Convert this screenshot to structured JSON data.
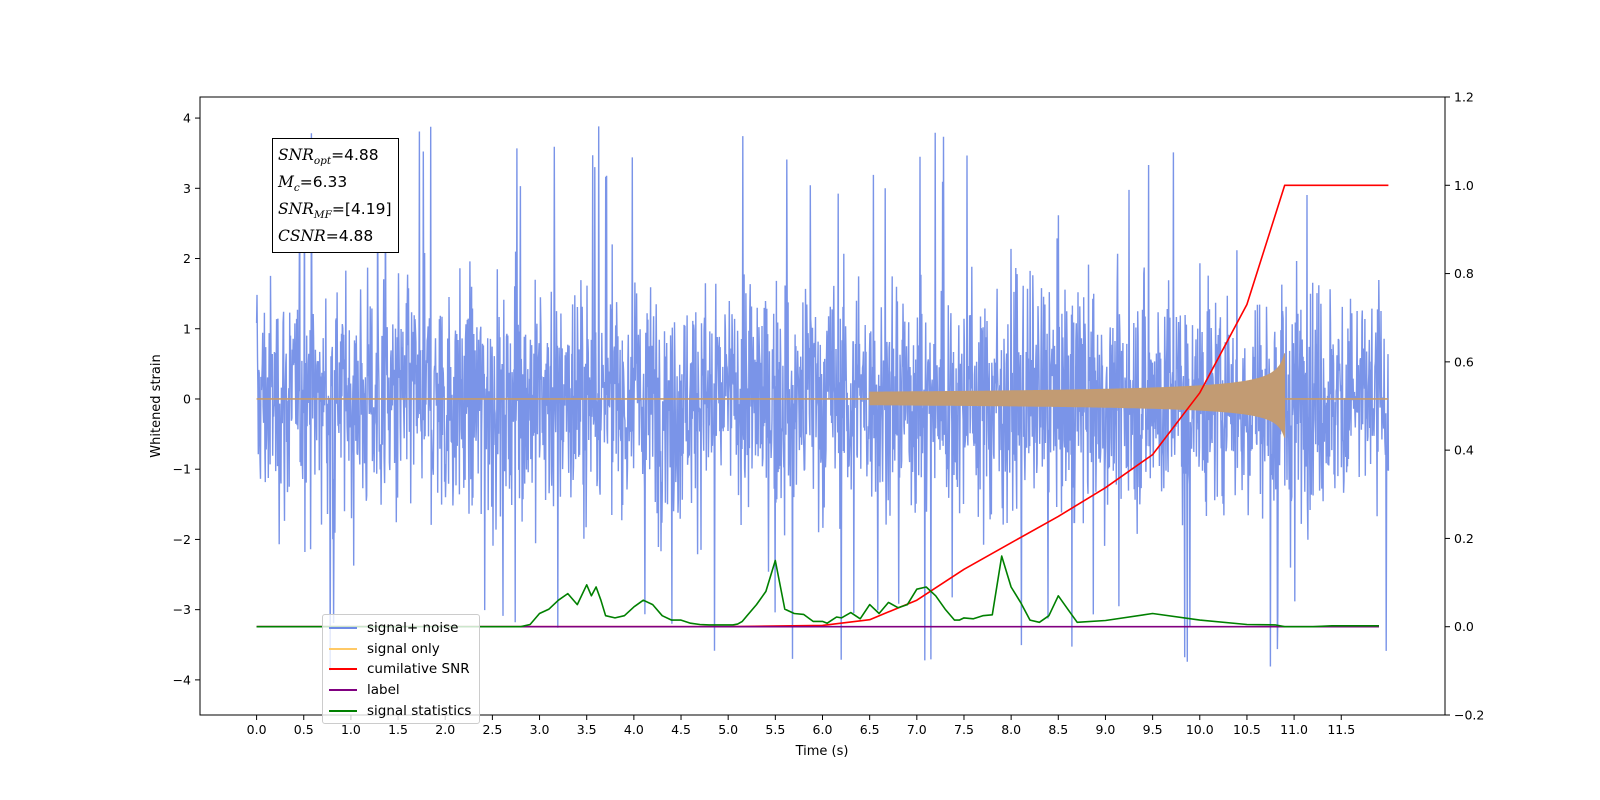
{
  "chart_data": {
    "type": "line",
    "xlabel": "Time (s)",
    "ylabel": "Whitened strain",
    "xlim": [
      -0.6,
      12.6
    ],
    "ylim": [
      -4.5,
      4.3
    ],
    "y2lim": [
      -0.2,
      1.2
    ],
    "x_ticks": [
      "0.0",
      "0.5",
      "1.0",
      "1.5",
      "2.0",
      "2.5",
      "3.0",
      "3.5",
      "4.0",
      "4.5",
      "5.0",
      "5.5",
      "6.0",
      "6.5",
      "7.0",
      "7.5",
      "8.0",
      "8.5",
      "9.0",
      "9.5",
      "10.0",
      "10.5",
      "11.0",
      "11.5"
    ],
    "y_ticks": [
      "4",
      "3",
      "2",
      "1",
      "0",
      "−1",
      "−2",
      "−3",
      "−4"
    ],
    "y2_ticks": [
      "1.2",
      "1.0",
      "0.8",
      "0.6",
      "0.4",
      "0.2",
      "0.0",
      "−0.2"
    ],
    "grid": false,
    "legend_position": "lower-left",
    "annotation": {
      "snr_opt": "=4.88",
      "mc": "=6.33",
      "snr_mf": "=[4.19]",
      "csnr": "=4.88"
    },
    "series": [
      {
        "name": "signal+ noise",
        "color": "#6f8be6",
        "axis": "left",
        "style": "noise band",
        "x_range": [
          0.0,
          12.0
        ],
        "envelope": [
          -3.0,
          3.0
        ],
        "peaks": [
          3.9,
          -4.1
        ]
      },
      {
        "name": "signal only",
        "color": "#ffc966",
        "axis": "left",
        "style": "chirp",
        "x_range": [
          0.0,
          12.0
        ],
        "merger_time": 10.9,
        "peak_amplitude": 0.65
      },
      {
        "name": "cumilative SNR",
        "color": "#ff0000",
        "axis": "right",
        "x": [
          0.0,
          5.0,
          6.0,
          6.5,
          7.0,
          7.5,
          8.0,
          8.5,
          9.0,
          9.5,
          10.0,
          10.5,
          10.9,
          11.0,
          12.0
        ],
        "y": [
          0.0,
          0.0,
          0.003,
          0.016,
          0.06,
          0.13,
          0.19,
          0.25,
          0.315,
          0.39,
          0.53,
          0.73,
          1.0,
          1.0,
          1.0
        ]
      },
      {
        "name": "label",
        "color": "#800080",
        "axis": "right",
        "x": [
          0.0,
          11.9
        ],
        "y": [
          0.0,
          0.0
        ]
      },
      {
        "name": "signal statistics",
        "color": "#008000",
        "axis": "right",
        "x": [
          0.0,
          2.8,
          2.9,
          3.0,
          3.1,
          3.2,
          3.3,
          3.4,
          3.5,
          3.55,
          3.6,
          3.65,
          3.7,
          3.8,
          3.9,
          4.0,
          4.1,
          4.2,
          4.3,
          4.4,
          4.5,
          4.6,
          4.7,
          4.8,
          4.9,
          5.0,
          5.05,
          5.1,
          5.15,
          5.2,
          5.3,
          5.4,
          5.5,
          5.6,
          5.7,
          5.8,
          5.9,
          6.0,
          6.05,
          6.1,
          6.15,
          6.2,
          6.3,
          6.4,
          6.5,
          6.6,
          6.7,
          6.8,
          6.9,
          7.0,
          7.1,
          7.2,
          7.3,
          7.4,
          7.45,
          7.5,
          7.6,
          7.7,
          7.8,
          7.9,
          8.0,
          8.1,
          8.2,
          8.3,
          8.4,
          8.5,
          8.6,
          8.7,
          9.0,
          9.5,
          10.0,
          10.5,
          10.8,
          10.9,
          11.0,
          11.2,
          11.4,
          11.9
        ],
        "y": [
          0.0,
          0.0,
          0.005,
          0.03,
          0.04,
          0.06,
          0.075,
          0.05,
          0.095,
          0.07,
          0.09,
          0.06,
          0.025,
          0.02,
          0.025,
          0.045,
          0.06,
          0.05,
          0.025,
          0.015,
          0.015,
          0.008,
          0.005,
          0.004,
          0.004,
          0.004,
          0.004,
          0.006,
          0.012,
          0.025,
          0.05,
          0.08,
          0.15,
          0.04,
          0.03,
          0.028,
          0.012,
          0.012,
          0.008,
          0.015,
          0.022,
          0.02,
          0.032,
          0.018,
          0.05,
          0.03,
          0.055,
          0.043,
          0.05,
          0.085,
          0.09,
          0.07,
          0.04,
          0.015,
          0.015,
          0.02,
          0.018,
          0.025,
          0.027,
          0.16,
          0.09,
          0.055,
          0.015,
          0.01,
          0.025,
          0.07,
          0.04,
          0.01,
          0.014,
          0.03,
          0.015,
          0.005,
          0.004,
          0.0,
          0.0,
          0.0,
          0.002,
          0.002
        ]
      }
    ]
  }
}
